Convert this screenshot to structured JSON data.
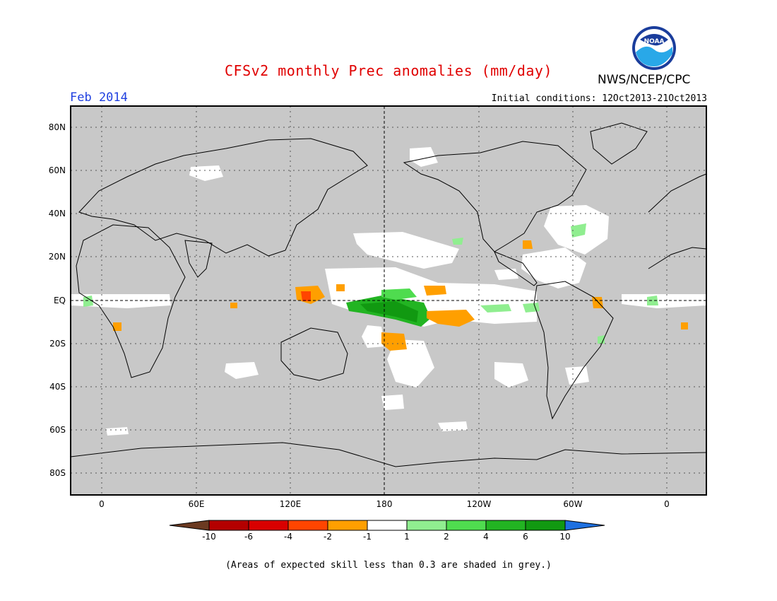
{
  "header": {
    "title": "CFSv2 monthly Prec anomalies (mm/day)",
    "month": "Feb 2014",
    "initial_conditions": "Initial conditions: 12Oct2013-21Oct2013",
    "agency": "NWS/NCEP/CPC",
    "logo_text": "NOAA"
  },
  "map": {
    "latitude_labels": [
      "80N",
      "60N",
      "40N",
      "20N",
      "EQ",
      "20S",
      "40S",
      "60S",
      "80S"
    ],
    "longitude_labels": [
      "0",
      "60E",
      "120E",
      "180",
      "120W",
      "60W",
      "0"
    ]
  },
  "legend": {
    "labels": [
      "-10",
      "-6",
      "-4",
      "-2",
      "-1",
      "1",
      "2",
      "4",
      "6",
      "10"
    ],
    "colors": [
      "#6b3a21",
      "#b40000",
      "#d90000",
      "#ff4500",
      "#ff9f00",
      "#ffffff",
      "#90ee90",
      "#4fdc4f",
      "#22b422",
      "#119911",
      "#1e70e0"
    ]
  },
  "colors": {
    "skill_mask": "#c8c8c8",
    "title": "#e00000",
    "month": "#2040e0"
  },
  "footnote": "(Areas of expected skill less than 0.3 are shaded in grey.)"
}
